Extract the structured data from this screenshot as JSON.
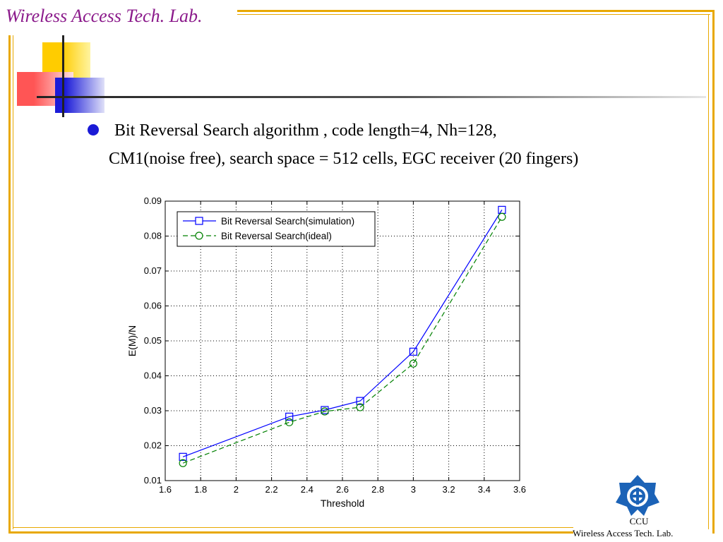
{
  "slide": {
    "lab_title": "Wireless Access Tech. Lab.",
    "bullet_line1": "Bit Reversal Search algorithm , code length=4, Nh=128,",
    "bullet_line2": "CM1(noise free), search space = 512 cells, EGC receiver (20 fingers)",
    "footer_ccu": "CCU",
    "footer_lab": "Wireless Access Tech. Lab.",
    "colors": {
      "frame": "#e8a800",
      "title": "#8b1a8b",
      "bullet": "#1a1ad6"
    }
  },
  "chart_data": {
    "type": "line",
    "title": "",
    "xlabel": "Threshold",
    "ylabel": "E(M)/N",
    "xlim": [
      1.6,
      3.6
    ],
    "ylim": [
      0.01,
      0.09
    ],
    "xticks": [
      "1.6",
      "1.8",
      "2",
      "2.2",
      "2.4",
      "2.6",
      "2.8",
      "3",
      "3.2",
      "3.4",
      "3.6"
    ],
    "yticks": [
      "0.01",
      "0.02",
      "0.03",
      "0.04",
      "0.05",
      "0.06",
      "0.07",
      "0.08",
      "0.09"
    ],
    "grid": true,
    "legend_position": "top-left",
    "x": [
      1.7,
      2.3,
      2.5,
      2.7,
      3.0,
      3.5
    ],
    "series": [
      {
        "name": "Bit Reversal Search(simulation)",
        "values": [
          0.0168,
          0.0283,
          0.0302,
          0.0328,
          0.0469,
          0.0875
        ],
        "color": "#0000ff",
        "line": "solid",
        "marker": "square"
      },
      {
        "name": "Bit Reversal Search(ideal)",
        "values": [
          0.015,
          0.0267,
          0.0298,
          0.031,
          0.0435,
          0.0855
        ],
        "color": "#008000",
        "line": "dashed",
        "marker": "circle"
      }
    ]
  }
}
